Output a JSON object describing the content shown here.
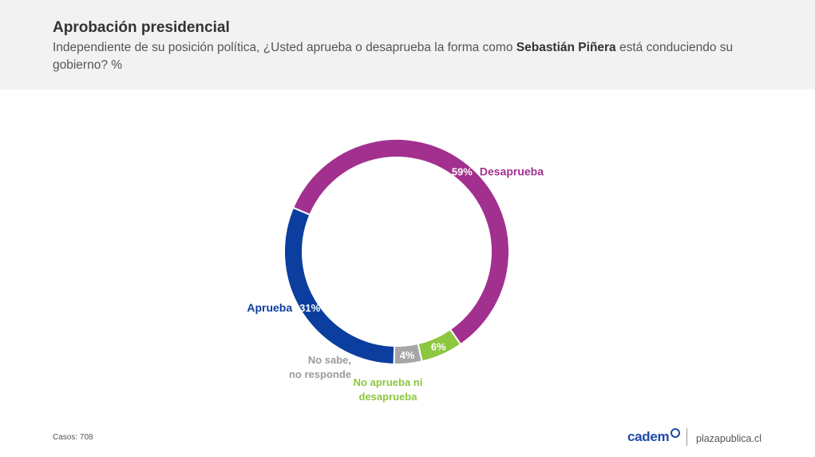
{
  "header": {
    "title": "Aprobación presidencial",
    "subtitle_pre": "Independiente de su posición política, ¿Usted aprueba o desaprueba la forma como ",
    "subtitle_name": "Sebastián Piñera",
    "subtitle_post": " está conduciendo su gobierno? %"
  },
  "chart_data": {
    "type": "pie",
    "subtype": "donut",
    "unit": "%",
    "slices": [
      {
        "label": "Desaprueba",
        "value": 59,
        "value_label": "59%",
        "color": "#a2308e"
      },
      {
        "label": "No aprueba ni desaprueba",
        "value": 6,
        "value_label": "6%",
        "color": "#8dc63f"
      },
      {
        "label": "No sabe, no responde",
        "value": 4,
        "value_label": "4%",
        "color": "#a6a6a6"
      },
      {
        "label": "Aprueba",
        "value": 31,
        "value_label": "31%",
        "color": "#0b3e9e"
      }
    ]
  },
  "footer": {
    "casos": "Casos: 708",
    "brand": "cadem",
    "site": "plazapublica.cl"
  }
}
